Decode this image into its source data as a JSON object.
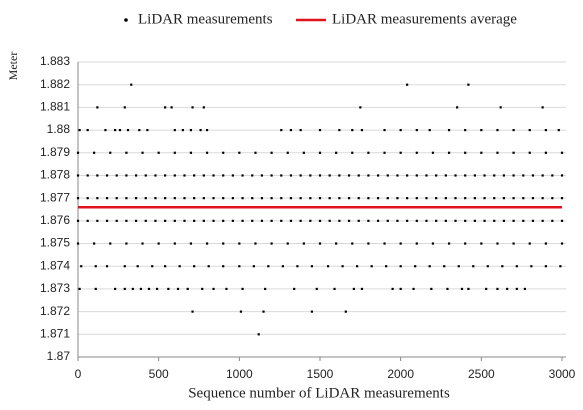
{
  "chart_data": {
    "type": "scatter",
    "xlabel": "Sequence number of LiDAR measurements",
    "ylabel": "Meter",
    "xlim": [
      0,
      3000
    ],
    "ylim": [
      1.87,
      1.883
    ],
    "xticks": [
      0,
      500,
      1000,
      1500,
      2000,
      2500,
      3000
    ],
    "yticks": [
      1.87,
      1.871,
      1.872,
      1.873,
      1.874,
      1.875,
      1.876,
      1.877,
      1.878,
      1.879,
      1.88,
      1.881,
      1.882,
      1.883
    ],
    "grid": true,
    "legend": "top",
    "series": [
      {
        "name": "LiDAR measurements",
        "type": "scatter",
        "color": "#000000",
        "x": [
          0,
          60,
          120,
          180,
          240,
          300,
          360,
          420,
          480,
          540,
          600,
          660,
          720,
          780,
          840,
          900,
          960,
          1020,
          1080,
          1140,
          1200,
          1260,
          1320,
          1380,
          1440,
          1500,
          1560,
          1620,
          1680,
          1740,
          1800,
          1860,
          1920,
          1980,
          2040,
          2100,
          2160,
          2220,
          2280,
          2340,
          2400,
          2460,
          2520,
          2580,
          2640,
          2700,
          2760,
          2820,
          2880,
          2940,
          3000,
          0,
          60,
          120,
          180,
          240,
          300,
          360,
          420,
          480,
          540,
          600,
          660,
          720,
          780,
          840,
          900,
          960,
          1020,
          1080,
          1140,
          1200,
          1260,
          1320,
          1380,
          1440,
          1500,
          1560,
          1620,
          1680,
          1740,
          1800,
          1860,
          1920,
          1980,
          2040,
          2100,
          2160,
          2220,
          2280,
          2340,
          2400,
          2460,
          2520,
          2580,
          2640,
          2700,
          2760,
          2820,
          2880,
          2940,
          3000,
          0,
          60,
          120,
          180,
          240,
          300,
          360,
          420,
          480,
          540,
          600,
          660,
          720,
          780,
          840,
          900,
          960,
          1020,
          1080,
          1140,
          1200,
          1260,
          1320,
          1380,
          1440,
          1500,
          1560,
          1620,
          1680,
          1740,
          1800,
          1860,
          1920,
          1980,
          2040,
          2100,
          2160,
          2220,
          2280,
          2340,
          2400,
          2460,
          2520,
          2580,
          2640,
          2700,
          2760,
          2820,
          2880,
          2940,
          3000,
          0,
          100,
          200,
          300,
          400,
          500,
          600,
          700,
          800,
          900,
          1000,
          1100,
          1200,
          1300,
          1400,
          1500,
          1600,
          1700,
          1800,
          1900,
          2000,
          2100,
          2200,
          2300,
          2400,
          2500,
          2600,
          2700,
          2800,
          2900,
          3000,
          0,
          100,
          200,
          300,
          400,
          500,
          600,
          700,
          800,
          900,
          1000,
          1100,
          1200,
          1300,
          1400,
          1500,
          1600,
          1700,
          1800,
          1900,
          2000,
          2100,
          2200,
          2300,
          2400,
          2500,
          2600,
          2700,
          2800,
          2900,
          3000,
          20,
          110,
          180,
          290,
          370,
          460,
          540,
          630,
          720,
          810,
          900,
          1000,
          1090,
          1180,
          1270,
          1360,
          1450,
          1550,
          1640,
          1730,
          1820,
          1910,
          2000,
          2090,
          2180,
          2270,
          2360,
          2450,
          2540,
          2630,
          2720,
          2810,
          2900,
          2990,
          10,
          60,
          170,
          230,
          260,
          310,
          380,
          430,
          600,
          650,
          700,
          760,
          800,
          1260,
          1320,
          1380,
          1500,
          1620,
          1700,
          1760,
          1900,
          2000,
          2100,
          2180,
          2300,
          2400,
          2500,
          2600,
          2700,
          2800,
          2900,
          2980,
          10,
          110,
          230,
          290,
          340,
          390,
          440,
          490,
          560,
          620,
          680,
          770,
          840,
          920,
          1020,
          1160,
          1340,
          1480,
          1590,
          1710,
          1760,
          1950,
          2000,
          2080,
          2190,
          2290,
          2380,
          2420,
          2530,
          2600,
          2660,
          2720,
          2770,
          120,
          290,
          540,
          580,
          710,
          780,
          1750,
          2350,
          2620,
          2880,
          330,
          2040,
          2420,
          710,
          1010,
          1150,
          1450,
          1660,
          1120
        ],
        "values": [
          1.878,
          1.878,
          1.878,
          1.878,
          1.878,
          1.878,
          1.878,
          1.878,
          1.878,
          1.878,
          1.878,
          1.878,
          1.878,
          1.878,
          1.878,
          1.878,
          1.878,
          1.878,
          1.878,
          1.878,
          1.878,
          1.878,
          1.878,
          1.878,
          1.878,
          1.878,
          1.878,
          1.878,
          1.878,
          1.878,
          1.878,
          1.878,
          1.878,
          1.878,
          1.878,
          1.878,
          1.878,
          1.878,
          1.878,
          1.878,
          1.878,
          1.878,
          1.878,
          1.878,
          1.878,
          1.878,
          1.878,
          1.878,
          1.878,
          1.878,
          1.878,
          1.877,
          1.877,
          1.877,
          1.877,
          1.877,
          1.877,
          1.877,
          1.877,
          1.877,
          1.877,
          1.877,
          1.877,
          1.877,
          1.877,
          1.877,
          1.877,
          1.877,
          1.877,
          1.877,
          1.877,
          1.877,
          1.877,
          1.877,
          1.877,
          1.877,
          1.877,
          1.877,
          1.877,
          1.877,
          1.877,
          1.877,
          1.877,
          1.877,
          1.877,
          1.877,
          1.877,
          1.877,
          1.877,
          1.877,
          1.877,
          1.877,
          1.877,
          1.877,
          1.877,
          1.877,
          1.877,
          1.877,
          1.877,
          1.877,
          1.877,
          1.877,
          1.876,
          1.876,
          1.876,
          1.876,
          1.876,
          1.876,
          1.876,
          1.876,
          1.876,
          1.876,
          1.876,
          1.876,
          1.876,
          1.876,
          1.876,
          1.876,
          1.876,
          1.876,
          1.876,
          1.876,
          1.876,
          1.876,
          1.876,
          1.876,
          1.876,
          1.876,
          1.876,
          1.876,
          1.876,
          1.876,
          1.876,
          1.876,
          1.876,
          1.876,
          1.876,
          1.876,
          1.876,
          1.876,
          1.876,
          1.876,
          1.876,
          1.876,
          1.876,
          1.876,
          1.876,
          1.876,
          1.876,
          1.876,
          1.876,
          1.876,
          1.876,
          1.879,
          1.879,
          1.879,
          1.879,
          1.879,
          1.879,
          1.879,
          1.879,
          1.879,
          1.879,
          1.879,
          1.879,
          1.879,
          1.879,
          1.879,
          1.879,
          1.879,
          1.879,
          1.879,
          1.879,
          1.879,
          1.879,
          1.879,
          1.879,
          1.879,
          1.879,
          1.879,
          1.879,
          1.879,
          1.879,
          1.879,
          1.875,
          1.875,
          1.875,
          1.875,
          1.875,
          1.875,
          1.875,
          1.875,
          1.875,
          1.875,
          1.875,
          1.875,
          1.875,
          1.875,
          1.875,
          1.875,
          1.875,
          1.875,
          1.875,
          1.875,
          1.875,
          1.875,
          1.875,
          1.875,
          1.875,
          1.875,
          1.875,
          1.875,
          1.875,
          1.875,
          1.875,
          1.874,
          1.874,
          1.874,
          1.874,
          1.874,
          1.874,
          1.874,
          1.874,
          1.874,
          1.874,
          1.874,
          1.874,
          1.874,
          1.874,
          1.874,
          1.874,
          1.874,
          1.874,
          1.874,
          1.874,
          1.874,
          1.874,
          1.874,
          1.874,
          1.874,
          1.874,
          1.874,
          1.874,
          1.874,
          1.874,
          1.874,
          1.874,
          1.874,
          1.874,
          1.88,
          1.88,
          1.88,
          1.88,
          1.88,
          1.88,
          1.88,
          1.88,
          1.88,
          1.88,
          1.88,
          1.88,
          1.88,
          1.88,
          1.88,
          1.88,
          1.88,
          1.88,
          1.88,
          1.88,
          1.88,
          1.88,
          1.88,
          1.88,
          1.88,
          1.88,
          1.88,
          1.88,
          1.88,
          1.88,
          1.88,
          1.88,
          1.873,
          1.873,
          1.873,
          1.873,
          1.873,
          1.873,
          1.873,
          1.873,
          1.873,
          1.873,
          1.873,
          1.873,
          1.873,
          1.873,
          1.873,
          1.873,
          1.873,
          1.873,
          1.873,
          1.873,
          1.873,
          1.873,
          1.873,
          1.873,
          1.873,
          1.873,
          1.873,
          1.873,
          1.873,
          1.873,
          1.873,
          1.873,
          1.873,
          1.881,
          1.881,
          1.881,
          1.881,
          1.881,
          1.881,
          1.881,
          1.881,
          1.881,
          1.881,
          1.882,
          1.882,
          1.882,
          1.872,
          1.872,
          1.872,
          1.872,
          1.872,
          1.871
        ]
      },
      {
        "name": "LiDAR measurements average",
        "type": "line",
        "color": "#e0141e",
        "x": [
          0,
          3000
        ],
        "values": [
          1.8766,
          1.8766
        ]
      }
    ]
  }
}
